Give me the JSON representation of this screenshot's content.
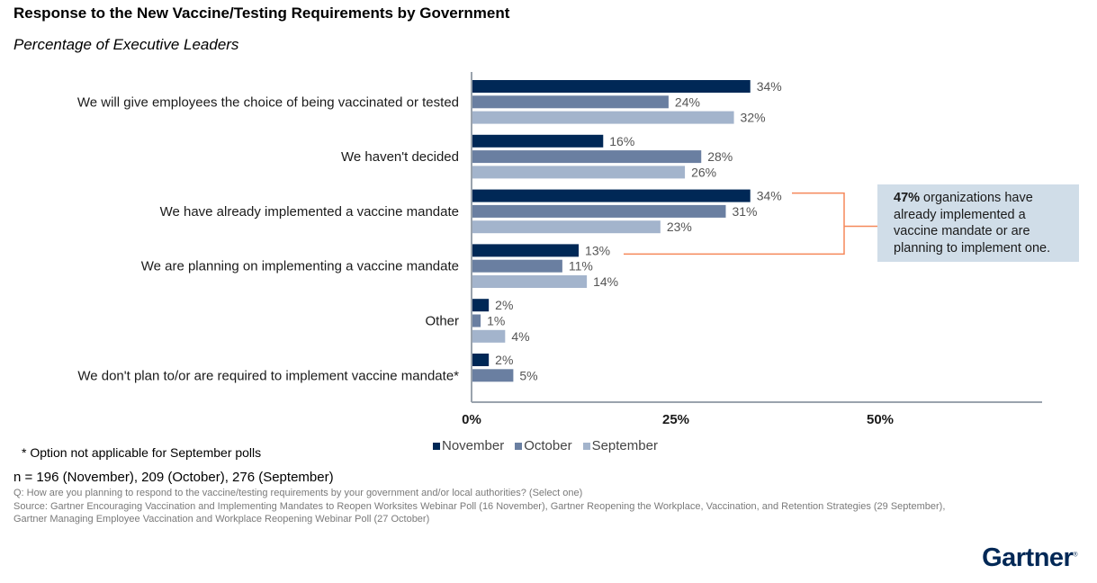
{
  "header": {
    "title": "Response to the New Vaccine/Testing Requirements by Government",
    "subtitle": "Percentage of Executive Leaders"
  },
  "colors": {
    "november": "#002856",
    "october": "#6a7fa1",
    "september": "#a3b4cc",
    "callout_line": "#f5885a",
    "callout_bg": "#d0dde8",
    "axis": "#9aa3ad"
  },
  "chart_data": {
    "type": "bar",
    "orientation": "horizontal",
    "title": "Response to the New Vaccine/Testing Requirements by Government",
    "subtitle": "Percentage of Executive Leaders",
    "xlabel": "",
    "ylabel": "",
    "xlim": [
      0,
      70
    ],
    "xticks": [
      0,
      25,
      50
    ],
    "xtick_labels": [
      "0%",
      "25%",
      "50%"
    ],
    "grid": false,
    "legend_position": "bottom",
    "categories": [
      "We will give employees the choice of being vaccinated or tested",
      "We haven't decided",
      "We have already implemented a vaccine mandate",
      "We are planning on implementing a vaccine mandate",
      "Other",
      "We don't plan to/or are required to implement vaccine mandate*"
    ],
    "series": [
      {
        "name": "November",
        "values": [
          34,
          16,
          34,
          13,
          2,
          2
        ]
      },
      {
        "name": "October",
        "values": [
          24,
          28,
          31,
          11,
          1,
          5
        ]
      },
      {
        "name": "September",
        "values": [
          32,
          26,
          23,
          14,
          4,
          null
        ]
      }
    ],
    "annotations": [
      {
        "bold": "47%",
        "text": " organizations have already implemented a vaccine mandate or are planning to implement one.",
        "refers_to": [
          "We have already implemented a vaccine mandate",
          "We are planning on implementing a vaccine mandate"
        ]
      }
    ]
  },
  "callout": {
    "bold": "47%",
    "text": " organizations have already implemented a vaccine mandate or are planning to implement one."
  },
  "legend": {
    "items": [
      "November",
      "October",
      "September"
    ]
  },
  "footer": {
    "footnote": "* Option not applicable for September polls",
    "n_line": "n = 196 (November), 209 (October), 276 (September)",
    "question": "Q: How are you planning to respond to the vaccine/testing requirements by your government and/or local authorities? (Select one)",
    "source": "Source: Gartner Encouraging Vaccination and Implementing Mandates to Reopen Worksites Webinar Poll (16 November), Gartner Reopening the Workplace, Vaccination, and Retention Strategies (29 September), Gartner Managing Employee Vaccination and Workplace Reopening Webinar Poll (27 October)",
    "logo": "Gartner",
    "logo_mark": "®"
  }
}
